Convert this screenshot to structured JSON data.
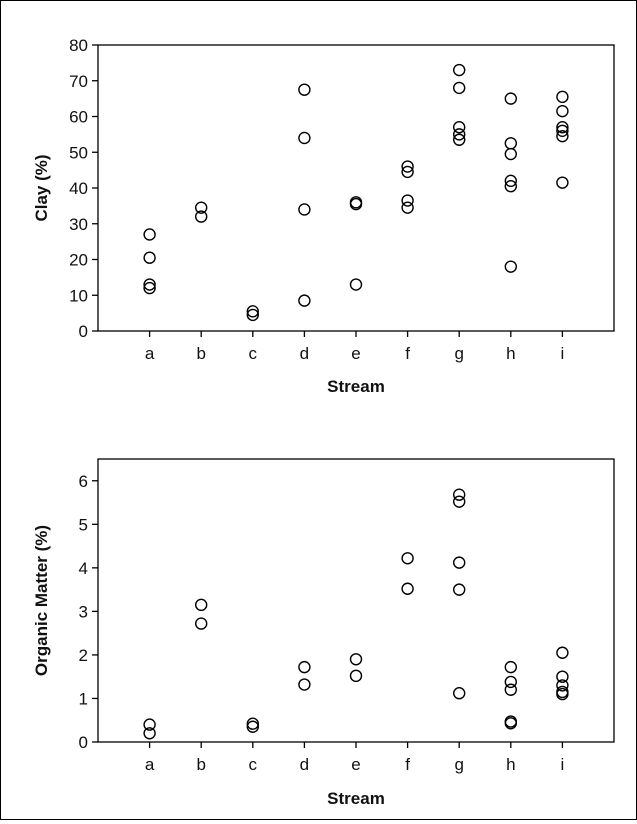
{
  "chart_data": [
    {
      "type": "scatter",
      "xlabel": "Stream",
      "ylabel": "Clay (%)",
      "categories": [
        "a",
        "b",
        "c",
        "d",
        "e",
        "f",
        "g",
        "h",
        "i"
      ],
      "yticks": [
        "0",
        "10",
        "20",
        "30",
        "40",
        "50",
        "60",
        "70",
        "80"
      ],
      "ylim": [
        0,
        80
      ],
      "grid": false,
      "points": [
        {
          "x": "a",
          "y": [
            27,
            20.5,
            13,
            12
          ]
        },
        {
          "x": "b",
          "y": [
            34.5,
            32
          ]
        },
        {
          "x": "c",
          "y": [
            5.5,
            4.5
          ]
        },
        {
          "x": "d",
          "y": [
            67.5,
            54,
            34,
            8.5
          ]
        },
        {
          "x": "e",
          "y": [
            36,
            35.5,
            13
          ]
        },
        {
          "x": "f",
          "y": [
            46,
            44.5,
            36.5,
            34.5
          ]
        },
        {
          "x": "g",
          "y": [
            73,
            68,
            57,
            55,
            53.5
          ]
        },
        {
          "x": "h",
          "y": [
            65,
            52.5,
            49.5,
            42,
            40.5,
            18
          ]
        },
        {
          "x": "i",
          "y": [
            65.5,
            61.5,
            57,
            56,
            54.5,
            41.5
          ]
        }
      ]
    },
    {
      "type": "scatter",
      "xlabel": "Stream",
      "ylabel": "Organic Matter (%)",
      "categories": [
        "a",
        "b",
        "c",
        "d",
        "e",
        "f",
        "g",
        "h",
        "i"
      ],
      "yticks": [
        "0",
        "1",
        "2",
        "3",
        "4",
        "5",
        "6"
      ],
      "ylim": [
        0,
        6.5
      ],
      "grid": false,
      "points": [
        {
          "x": "a",
          "y": [
            0.4,
            0.2
          ]
        },
        {
          "x": "b",
          "y": [
            3.15,
            2.72
          ]
        },
        {
          "x": "c",
          "y": [
            0.42,
            0.35
          ]
        },
        {
          "x": "d",
          "y": [
            1.72,
            1.32
          ]
        },
        {
          "x": "e",
          "y": [
            1.9,
            1.52
          ]
        },
        {
          "x": "f",
          "y": [
            4.22,
            3.52
          ]
        },
        {
          "x": "g",
          "y": [
            5.68,
            5.52,
            4.12,
            3.5,
            1.12
          ]
        },
        {
          "x": "h",
          "y": [
            1.72,
            1.38,
            1.2,
            0.47,
            0.43
          ]
        },
        {
          "x": "i",
          "y": [
            2.05,
            1.5,
            1.3,
            1.15,
            1.1
          ]
        }
      ]
    }
  ]
}
